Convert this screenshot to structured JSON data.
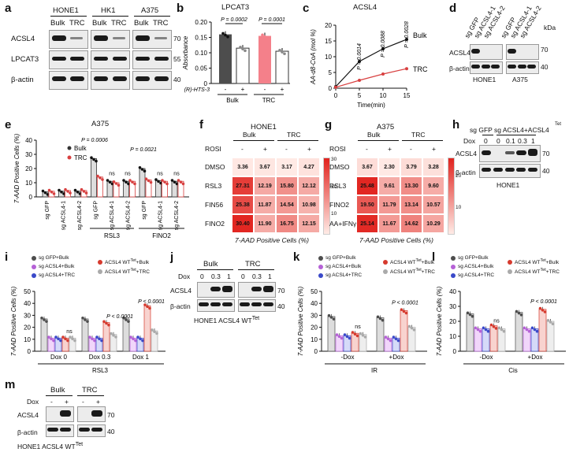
{
  "panel_labels": [
    "a",
    "b",
    "c",
    "d",
    "e",
    "f",
    "g",
    "h",
    "i",
    "j",
    "k",
    "l",
    "m"
  ],
  "common": {
    "kda": "kDa",
    "bulk": "Bulk",
    "trc": "TRC",
    "actin": "β-actin",
    "acsl4": "ACSL4",
    "lpcat3": "LPCAT3",
    "dox": "Dox",
    "minus": "-",
    "plus": "+",
    "ns": "ns",
    "m70": "70",
    "m55": "55",
    "m40": "40",
    "ylabel_7aad": "7-AAD Positive Cells (%)",
    "p_lt": "P < 0.0001"
  },
  "a": {
    "cell_lines": [
      "HONE1",
      "HK1",
      "A375"
    ],
    "lanes": [
      "Bulk",
      "TRC",
      "Bulk",
      "TRC",
      "Bulk",
      "TRC"
    ],
    "rows": [
      "ACSL4",
      "LPCAT3",
      "β-actin"
    ],
    "markers": [
      "70",
      "55",
      "40"
    ]
  },
  "b": {
    "chart_data": {
      "type": "bar",
      "title": "LPCAT3",
      "ylabel": "Absorbance",
      "ylim": [
        0,
        0.2
      ],
      "yticks": [
        "0",
        "0.05",
        "0.10",
        "0.15",
        "0.20"
      ],
      "treatment_label": "(R)-HTS-3",
      "groups": [
        "Bulk",
        "TRC"
      ],
      "conditions": [
        "-",
        "+",
        "-",
        "+"
      ],
      "values": [
        0.16,
        0.115,
        0.155,
        0.105
      ],
      "pvalues": [
        "P = 0.0002",
        "P = 0.0001"
      ],
      "colors": [
        "#4d4d4d",
        "#ffffff",
        "#f4808a",
        "#ffffff"
      ]
    }
  },
  "c": {
    "chart_data": {
      "type": "line",
      "title": "ACSL4",
      "ylabel": "AA-d8-CoA (mol %)",
      "xlabel": "Time(min)",
      "x": [
        0,
        5,
        10,
        15
      ],
      "xlim": [
        0,
        15
      ],
      "ylim": [
        0,
        20
      ],
      "yticks": [
        "0",
        "5",
        "10",
        "15",
        "20"
      ],
      "series": [
        {
          "name": "Bulk",
          "values": [
            0.5,
            8.5,
            12.5,
            15.5
          ]
        },
        {
          "name": "TRC",
          "values": [
            0.3,
            2.5,
            4.5,
            6.2
          ]
        }
      ],
      "pvalues": [
        "P = 0.0014",
        "P = 0.0088",
        "P = 0.0028"
      ]
    }
  },
  "d": {
    "lanes": [
      "sg GFP",
      "sg ACSL4-1",
      "sg ACSL4-2",
      "sg GFP",
      "sg ACSL4-1",
      "sg ACSL4-2"
    ],
    "cells": [
      "HONE1",
      "A375"
    ],
    "markers": [
      "70",
      "40"
    ]
  },
  "e": {
    "chart_data": {
      "type": "bar",
      "title": "A375",
      "ylabel": "7-AAD Positive Cells (%)",
      "ylim": [
        0,
        40
      ],
      "yticks": [
        "0",
        "10",
        "20",
        "30",
        "40"
      ],
      "categories": [
        "sg GFP",
        "sg ACSL4-1",
        "sg ACSL4-2",
        "sg GFP",
        "sg ACSL4-1",
        "sg ACSL4-2",
        "sg GFP",
        "sg ACSL4-1",
        "sg ACSL4-2"
      ],
      "series": [
        {
          "name": "Bulk",
          "values": [
            3.5,
            4,
            4,
            27,
            11,
            11,
            20,
            11.5,
            11
          ]
        },
        {
          "name": "TRC",
          "values": [
            4,
            4.5,
            4.5,
            14,
            10,
            11,
            12,
            11,
            11
          ]
        }
      ],
      "treatment_groups": [
        "RSL3",
        "FINO2"
      ],
      "pvalues": [
        "P = 0.0006",
        "P = 0.0021"
      ],
      "ns": [
        "ns",
        "ns",
        "ns",
        "ns"
      ]
    }
  },
  "f": {
    "chart_data": {
      "type": "heatmap",
      "title": "HONE1",
      "xlabel": "7-AAD Positive Cells (%)",
      "column_groups": [
        "Bulk",
        "TRC"
      ],
      "rosi_label": "ROSI",
      "rosi": [
        "-",
        "+",
        "-",
        "+"
      ],
      "rows": [
        "DMSO",
        "RSL3",
        "FIN56",
        "FINO2"
      ],
      "values": [
        [
          3.36,
          3.67,
          3.17,
          4.27
        ],
        [
          27.31,
          12.19,
          15.8,
          12.12
        ],
        [
          25.38,
          11.87,
          14.54,
          10.98
        ],
        [
          30.4,
          11.9,
          16.75,
          12.15
        ]
      ],
      "scale_ticks": [
        "30",
        "20",
        "10"
      ],
      "vmin": 3,
      "vmax": 31
    }
  },
  "g": {
    "chart_data": {
      "type": "heatmap",
      "title": "A375",
      "xlabel": "7-AAD Positive Cells (%)",
      "column_groups": [
        "Bulk",
        "TRC"
      ],
      "rosi_label": "ROSI",
      "rosi": [
        "-",
        "+",
        "-",
        "+"
      ],
      "rows": [
        "DMSO",
        "RSL3",
        "FINO2",
        "AA+IFNγ"
      ],
      "values": [
        [
          3.67,
          2.3,
          3.79,
          3.28
        ],
        [
          25.48,
          9.61,
          13.3,
          9.6
        ],
        [
          19.5,
          11.79,
          13.14,
          10.57
        ],
        [
          25.14,
          11.67,
          14.62,
          10.29
        ]
      ],
      "scale_ticks": [
        "20",
        "10"
      ],
      "vmin": 2,
      "vmax": 26
    }
  },
  "h": {
    "top_label": "sg GFP  sg ACSL4+ACSL4",
    "tet": "Tet",
    "dox_values": [
      "0",
      "0",
      "0.1",
      "0.3",
      "1"
    ],
    "cell": "HONE1",
    "markers": [
      "70",
      "40"
    ]
  },
  "i": {
    "chart_data": {
      "type": "bar",
      "ylabel": "7-AAD Positive Cells (%)",
      "xlabel": "RSL3",
      "ylim": [
        0,
        50
      ],
      "yticks": [
        "0",
        "10",
        "20",
        "30",
        "40",
        "50"
      ],
      "categories": [
        "Dox 0",
        "Dox 0.3",
        "Dox 1"
      ],
      "series": [
        {
          "name": "sg GFP+Bulk",
          "values": [
            27,
            27,
            27
          ]
        },
        {
          "name": "sg ACSL4+Bulk",
          "values": [
            11,
            11,
            11
          ]
        },
        {
          "name": "sg ACSL4+TRC",
          "values": [
            11,
            11,
            11
          ]
        },
        {
          "name": "ACSL4 WT^Tet+Bulk",
          "values": [
            11,
            24,
            38
          ]
        },
        {
          "name": "ACSL4 WT^Tet+TRC",
          "values": [
            11,
            14,
            17
          ]
        }
      ],
      "pvalues": [
        "P < 0.0001",
        "P < 0.0001"
      ]
    }
  },
  "j": {
    "groups": [
      "Bulk",
      "TRC"
    ],
    "dox_values": [
      "0",
      "0.3",
      "1",
      "0",
      "0.3",
      "1"
    ],
    "caption": "HONE1 ACSL4 WT",
    "tet": "Tet",
    "markers": [
      "70",
      "40"
    ]
  },
  "k": {
    "chart_data": {
      "type": "bar",
      "ylabel": "7-AAD Positive Cells (%)",
      "xlabel": "IR",
      "ylim": [
        0,
        50
      ],
      "yticks": [
        "0",
        "10",
        "20",
        "30",
        "40",
        "50"
      ],
      "categories": [
        "-Dox",
        "+Dox"
      ],
      "series": [
        {
          "name": "sg GFP+Bulk",
          "values": [
            29,
            28
          ]
        },
        {
          "name": "sg ACSL4+Bulk",
          "values": [
            13,
            11
          ]
        },
        {
          "name": "sg ACSL4+TRC",
          "values": [
            13,
            11
          ]
        },
        {
          "name": "ACSL4 WT^Tet+Bulk",
          "values": [
            15,
            34
          ]
        },
        {
          "name": "ACSL4 WT^Tet+TRC",
          "values": [
            14,
            20
          ]
        }
      ],
      "pvalues": [
        "P < 0.0001"
      ]
    }
  },
  "l": {
    "chart_data": {
      "type": "bar",
      "ylabel": "7-AAD Positive Cells (%)",
      "xlabel": "Cis",
      "ylim": [
        0,
        40
      ],
      "yticks": [
        "0",
        "10",
        "20",
        "30",
        "40"
      ],
      "categories": [
        "-Dox",
        "+Dox"
      ],
      "series": [
        {
          "name": "sg GFP+Bulk",
          "values": [
            25,
            26
          ]
        },
        {
          "name": "sg ACSL4+Bulk",
          "values": [
            15,
            15
          ]
        },
        {
          "name": "sg ACSL4+TRC",
          "values": [
            15,
            15
          ]
        },
        {
          "name": "ACSL4 WT^Tet+Bulk",
          "values": [
            17,
            28
          ]
        },
        {
          "name": "ACSL4 WT^Tet+TRC",
          "values": [
            15,
            20
          ]
        }
      ],
      "pvalues": [
        "P < 0.0001"
      ]
    }
  },
  "m": {
    "groups": [
      "Bulk",
      "TRC"
    ],
    "dox_signs": [
      "-",
      "+",
      "-",
      "+"
    ],
    "caption": "HONE1 ACSL4 WT",
    "tet": "Tet",
    "markers": [
      "70",
      "40"
    ]
  },
  "legend": {
    "sg_gfp_bulk": "sg GFP+Bulk",
    "sg_acsl4_bulk": "sg ACSL4+Bulk",
    "sg_acsl4_trc": "sg ACSL4+TRC",
    "wt_bulk": "ACSL4 WT",
    "wt_trc": "ACSL4 WT",
    "tet": "Tet",
    "suffix_bulk": "+Bulk",
    "suffix_trc": "+TRC"
  },
  "colors": {
    "dark": "#4d4d4d",
    "pink": "#f4808a",
    "violet": "#b561d6",
    "blue": "#3a49c9",
    "red": "#d63a2e",
    "grey": "#aaaaaa",
    "trc_red": "#d84040"
  }
}
